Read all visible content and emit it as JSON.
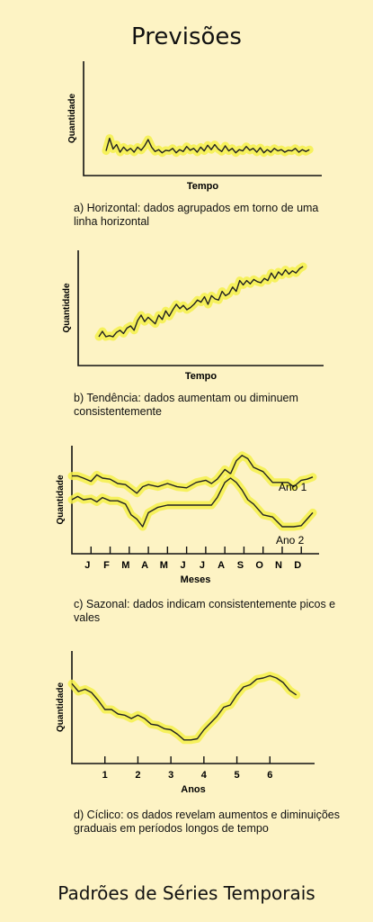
{
  "title": "Previsões",
  "footer": "Padrões de Séries Temporais",
  "chart_data": [
    {
      "type": "line",
      "ylabel": "Quantidade",
      "xlabel": "Tempo",
      "caption": "a) Horizontal: dados agrupados em torno de uma linha horizontal",
      "xlim": [
        0,
        30
      ],
      "ylim": [
        0,
        10
      ],
      "series": [
        {
          "x": [
            0,
            0.5,
            1,
            1.5,
            2,
            2.5,
            3,
            3.5,
            4,
            4.5,
            5,
            5.5,
            6,
            6.5,
            7,
            7.5,
            8,
            8.5,
            9,
            9.5,
            10,
            10.5,
            11,
            11.5,
            12,
            12.5,
            13,
            13.5,
            14,
            14.5,
            15,
            15.5,
            16,
            16.5,
            17,
            17.5,
            18,
            18.5,
            19,
            19.5,
            20,
            20.5,
            21,
            21.5,
            22,
            22.5,
            23,
            23.5,
            24,
            24.5,
            25,
            25.5,
            26,
            26.5,
            27,
            27.5,
            28,
            28.5,
            29
          ],
          "y": [
            3.2,
            5.2,
            3.5,
            4.2,
            3.0,
            3.8,
            3.2,
            3.6,
            3.0,
            3.8,
            3.3,
            4.0,
            5.0,
            3.8,
            3.1,
            3.4,
            2.9,
            3.3,
            3.2,
            3.6,
            2.9,
            3.4,
            3.1,
            3.9,
            3.3,
            3.6,
            3.0,
            3.8,
            3.2,
            4.1,
            3.4,
            4.2,
            3.5,
            3.1,
            4.0,
            3.2,
            3.6,
            2.9,
            3.4,
            3.2,
            3.9,
            3.3,
            3.6,
            3.0,
            3.7,
            2.9,
            3.4,
            3.0,
            3.6,
            3.2,
            3.4,
            3.0,
            3.3,
            3.2,
            3.6,
            3.0,
            3.4,
            3.1,
            3.4
          ]
        }
      ]
    },
    {
      "type": "line",
      "ylabel": "Quantidade",
      "xlabel": "Tempo",
      "caption": "b) Tendência: dados aumentam ou diminuem consistentemente",
      "xlim": [
        0,
        30
      ],
      "ylim": [
        0,
        10
      ],
      "series": [
        {
          "x": [
            0,
            0.5,
            1,
            1.5,
            2,
            2.5,
            3,
            3.5,
            4,
            4.5,
            5,
            5.5,
            6,
            6.5,
            7,
            7.5,
            8,
            8.5,
            9,
            9.5,
            10,
            10.5,
            11,
            11.5,
            12,
            12.5,
            13,
            13.5,
            14,
            14.5,
            15,
            15.5,
            16,
            16.5,
            17,
            17.5,
            18,
            18.5,
            19,
            19.5,
            20,
            20.5,
            21,
            21.5,
            22,
            22.5,
            23,
            23.5,
            24,
            24.5,
            25,
            25.5,
            26,
            26.5,
            27,
            27.5,
            28,
            28.5,
            29
          ],
          "y": [
            2.0,
            2.5,
            2.0,
            2.1,
            2.0,
            2.4,
            2.6,
            2.3,
            2.8,
            3.0,
            2.6,
            3.5,
            4.0,
            3.4,
            3.8,
            3.5,
            3.2,
            4.0,
            3.6,
            4.4,
            3.9,
            4.5,
            5.0,
            4.6,
            4.9,
            4.5,
            4.7,
            5.0,
            5.4,
            5.2,
            5.7,
            5.0,
            5.8,
            5.5,
            5.4,
            6.2,
            5.8,
            6.0,
            6.6,
            6.2,
            7.2,
            6.8,
            7.2,
            6.9,
            7.3,
            7.1,
            7.0,
            7.4,
            7.2,
            7.9,
            7.4,
            8.0,
            7.7,
            8.2,
            7.8,
            8.1,
            7.9,
            8.3,
            8.5
          ]
        }
      ]
    },
    {
      "type": "line",
      "ylabel": "Quantidade",
      "xlabel": "Meses",
      "caption": "c) Sazonal: dados indicam consistentemente picos e vales",
      "categories": [
        "J",
        "F",
        "M",
        "A",
        "M",
        "J",
        "J",
        "A",
        "S",
        "O",
        "N",
        "D"
      ],
      "xlim": [
        0,
        12.6
      ],
      "ylim": [
        0,
        10
      ],
      "series": [
        {
          "name": "Ano 1",
          "x": [
            0,
            0.3,
            0.6,
            1,
            1.3,
            1.6,
            2,
            2.4,
            2.8,
            3.1,
            3.4,
            3.7,
            4,
            4.5,
            5,
            5.5,
            6,
            6.5,
            7,
            7.3,
            7.6,
            8,
            8.3,
            8.6,
            8.9,
            9.2,
            9.5,
            10,
            10.5,
            11,
            11.3,
            11.6,
            12,
            12.3,
            12.6
          ],
          "y": [
            7.2,
            7.2,
            7.0,
            6.7,
            7.3,
            7.0,
            6.9,
            6.5,
            6.4,
            6.0,
            5.6,
            6.2,
            6.4,
            6.2,
            6.5,
            6.2,
            6.1,
            6.6,
            6.8,
            6.5,
            6.9,
            7.8,
            7.4,
            8.6,
            9.1,
            8.8,
            8.0,
            7.6,
            6.6,
            6.6,
            6.6,
            6.2,
            6.8,
            6.9,
            7.1
          ]
        },
        {
          "name": "Ano 2",
          "x": [
            0,
            0.3,
            0.6,
            1,
            1.3,
            1.6,
            2,
            2.4,
            2.8,
            3.1,
            3.4,
            3.7,
            4,
            4.5,
            5,
            5.5,
            6,
            6.5,
            7,
            7.3,
            7.6,
            8,
            8.3,
            8.6,
            8.9,
            9.2,
            9.5,
            10,
            10.5,
            11,
            11.3,
            11.6,
            12,
            12.3,
            12.6
          ],
          "y": [
            5.0,
            5.3,
            5.0,
            5.1,
            4.8,
            5.2,
            4.9,
            4.9,
            4.6,
            3.6,
            3.2,
            2.5,
            3.8,
            4.3,
            4.5,
            4.5,
            4.5,
            4.5,
            4.5,
            4.5,
            5.2,
            6.6,
            7.0,
            6.6,
            5.9,
            5.0,
            4.6,
            3.6,
            3.4,
            2.5,
            2.5,
            2.5,
            2.6,
            3.2,
            3.8
          ]
        }
      ]
    },
    {
      "type": "line",
      "ylabel": "Quantidade",
      "xlabel": "Anos",
      "caption": "d) Cíclico: os dados revelam aumentos e diminuições graduais em períodos longos de tempo",
      "categories": [
        "1",
        "2",
        "3",
        "4",
        "5",
        "6"
      ],
      "xlim": [
        0,
        7
      ],
      "ylim": [
        0,
        10
      ],
      "series": [
        {
          "x": [
            0,
            0.2,
            0.4,
            0.6,
            0.8,
            1,
            1.2,
            1.4,
            1.6,
            1.8,
            2,
            2.2,
            2.4,
            2.6,
            2.8,
            3,
            3.2,
            3.4,
            3.6,
            3.8,
            4,
            4.2,
            4.4,
            4.6,
            4.8,
            5,
            5.2,
            5.4,
            5.6,
            5.8,
            6,
            6.2,
            6.4,
            6.6,
            6.8
          ],
          "y": [
            7.1,
            6.4,
            6.6,
            6.3,
            5.6,
            4.8,
            4.8,
            4.4,
            4.3,
            4.0,
            4.3,
            4.0,
            3.5,
            3.4,
            3.1,
            3.0,
            2.6,
            2.1,
            2.1,
            2.2,
            3.0,
            3.6,
            4.2,
            5.0,
            5.2,
            6.1,
            6.8,
            7.0,
            7.5,
            7.6,
            7.8,
            7.6,
            7.2,
            6.5,
            6.1
          ]
        }
      ]
    }
  ]
}
